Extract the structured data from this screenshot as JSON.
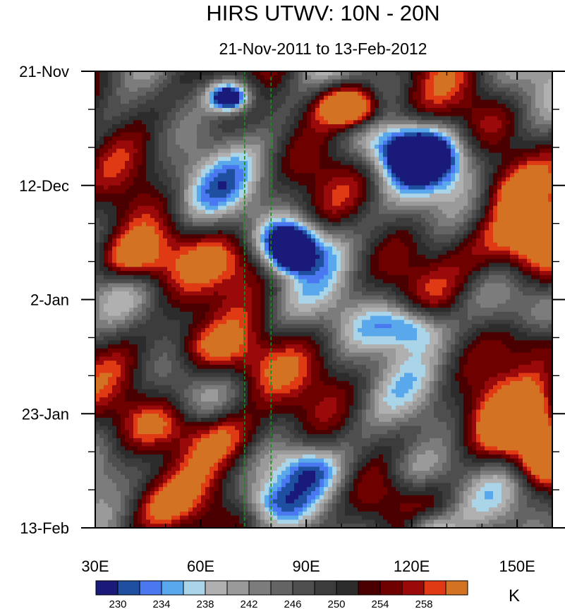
{
  "chart_data": {
    "type": "heatmap",
    "title": "HIRS UTWV: 10N - 20N",
    "subtitle": "21-Nov-2011 to 13-Feb-2012",
    "xlabel": "",
    "ylabel": "",
    "x_range": [
      30,
      160
    ],
    "x_ticks": [
      {
        "value": 30,
        "label": "30E"
      },
      {
        "value": 60,
        "label": "60E"
      },
      {
        "value": 90,
        "label": "90E"
      },
      {
        "value": 120,
        "label": "120E"
      },
      {
        "value": 150,
        "label": "150E"
      }
    ],
    "y_range_days": [
      0,
      84
    ],
    "y_ticks": [
      {
        "value": 0,
        "label": "21-Nov"
      },
      {
        "value": 21,
        "label": "12-Dec"
      },
      {
        "value": 42,
        "label": "2-Jan"
      },
      {
        "value": 63,
        "label": "23-Jan"
      },
      {
        "value": 84,
        "label": "13-Feb"
      }
    ],
    "reference_lines_lon": [
      72.5,
      80
    ],
    "colorbar": {
      "unit": "K",
      "levels": [
        228,
        230,
        232,
        234,
        236,
        238,
        240,
        242,
        244,
        246,
        248,
        250,
        252,
        254,
        256,
        258,
        260
      ],
      "labels": [
        "230",
        "234",
        "238",
        "242",
        "246",
        "250",
        "254",
        "258"
      ],
      "colors": [
        "#1a1a7a",
        "#1f4fa0",
        "#4a78f0",
        "#5aa8ec",
        "#aad4e8",
        "#b0b0b0",
        "#9a9a9a",
        "#7c7c7c",
        "#646464",
        "#4e4e4e",
        "#3c3c3c",
        "#2c2c2c",
        "#4a0000",
        "#6e0000",
        "#9a0a0a",
        "#e03a14",
        "#d47224"
      ]
    },
    "field_features": [
      {
        "lon": 68,
        "day": 5,
        "value": 226,
        "radius": 5
      },
      {
        "lon": 70,
        "day": 4,
        "value": 232,
        "radius": 9
      },
      {
        "lon": 100,
        "day": 6,
        "value": 268,
        "radius": 10
      },
      {
        "lon": 104,
        "day": 7,
        "value": 262,
        "radius": 7
      },
      {
        "lon": 122,
        "day": 15,
        "value": 230,
        "radius": 10
      },
      {
        "lon": 114,
        "day": 14,
        "value": 236,
        "radius": 12
      },
      {
        "lon": 128,
        "day": 18,
        "value": 240,
        "radius": 12
      },
      {
        "lon": 85,
        "day": 31,
        "value": 232,
        "radius": 8
      },
      {
        "lon": 88,
        "day": 32,
        "value": 236,
        "radius": 10
      },
      {
        "lon": 85,
        "day": 35,
        "value": 234,
        "radius": 6
      },
      {
        "lon": 45,
        "day": 33,
        "value": 262,
        "radius": 14
      },
      {
        "lon": 40,
        "day": 35,
        "value": 260,
        "radius": 9
      },
      {
        "lon": 70,
        "day": 35,
        "value": 254,
        "radius": 10
      },
      {
        "lon": 152,
        "day": 33,
        "value": 268,
        "radius": 15
      },
      {
        "lon": 160,
        "day": 30,
        "value": 262,
        "radius": 10
      },
      {
        "lon": 120,
        "day": 47,
        "value": 232,
        "radius": 9
      },
      {
        "lon": 110,
        "day": 47,
        "value": 240,
        "radius": 12
      },
      {
        "lon": 70,
        "day": 53,
        "value": 262,
        "radius": 14
      },
      {
        "lon": 60,
        "day": 50,
        "value": 256,
        "radius": 10
      },
      {
        "lon": 65,
        "day": 67,
        "value": 262,
        "radius": 12
      },
      {
        "lon": 48,
        "day": 65,
        "value": 258,
        "radius": 10
      },
      {
        "lon": 150,
        "day": 66,
        "value": 268,
        "radius": 15
      },
      {
        "lon": 158,
        "day": 72,
        "value": 264,
        "radius": 8
      },
      {
        "lon": 90,
        "day": 73,
        "value": 236,
        "radius": 10
      },
      {
        "lon": 120,
        "day": 73,
        "value": 238,
        "radius": 10
      },
      {
        "lon": 80,
        "day": 79,
        "value": 238,
        "radius": 8
      },
      {
        "lon": 125,
        "day": 84,
        "value": 234,
        "radius": 7
      },
      {
        "lon": 60,
        "day": 22,
        "value": 240,
        "radius": 14
      },
      {
        "lon": 40,
        "day": 3,
        "value": 256,
        "radius": 14
      },
      {
        "lon": 45,
        "day": 80,
        "value": 258,
        "radius": 12
      },
      {
        "lon": 155,
        "day": 50,
        "value": 256,
        "radius": 10
      },
      {
        "lon": 140,
        "day": 8,
        "value": 254,
        "radius": 12
      },
      {
        "lon": 150,
        "day": 22,
        "value": 256,
        "radius": 10
      }
    ]
  }
}
